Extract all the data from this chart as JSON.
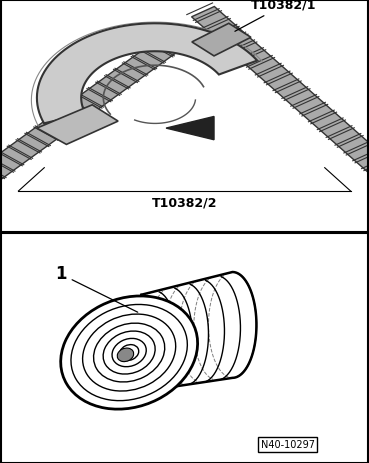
{
  "fig_width": 3.69,
  "fig_height": 4.63,
  "dpi": 100,
  "bg_color": "#ffffff",
  "border_color": "#000000",
  "panel1_label1": "T10382/1",
  "panel1_label2": "T10382/2",
  "panel2_label1": "1",
  "watermark": "N40-10297",
  "gray_fill": "#cccccc",
  "light_gray": "#dddddd",
  "black": "#000000"
}
